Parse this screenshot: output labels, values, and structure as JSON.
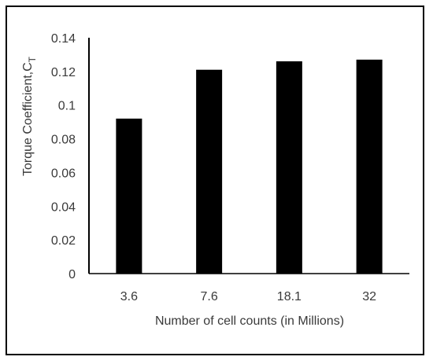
{
  "chart_data": {
    "type": "bar",
    "categories": [
      "3.6",
      "7.6",
      "18.1",
      "32"
    ],
    "values": [
      0.092,
      0.121,
      0.126,
      0.127
    ],
    "xlabel": "Number of cell counts (in Millions)",
    "ylabel": "Torque Coefficient,C",
    "ylabel_subscript": "T",
    "ylim": [
      0,
      0.14
    ],
    "yticks": [
      "0",
      "0.02",
      "0.04",
      "0.06",
      "0.08",
      "0.1",
      "0.12",
      "0.14"
    ],
    "grid": false,
    "bar_color": "#000000",
    "axis_color": "#000000"
  }
}
